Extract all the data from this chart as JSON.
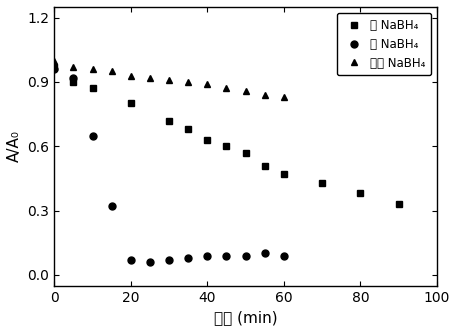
{
  "series1_label": "无 NaBH₄",
  "series2_label": "有 NaBH₄",
  "series3_label": "仅有 NaBH₄",
  "series1_x": [
    0,
    5,
    10,
    20,
    30,
    35,
    40,
    45,
    50,
    55,
    60,
    70,
    80,
    90
  ],
  "series1_y": [
    0.97,
    0.9,
    0.87,
    0.8,
    0.72,
    0.68,
    0.63,
    0.6,
    0.57,
    0.51,
    0.47,
    0.43,
    0.38,
    0.33
  ],
  "series2_x": [
    0,
    5,
    10,
    15,
    20,
    25,
    30,
    35,
    40,
    45,
    50,
    55,
    60
  ],
  "series2_y": [
    0.96,
    0.92,
    0.65,
    0.32,
    0.07,
    0.06,
    0.07,
    0.08,
    0.09,
    0.09,
    0.09,
    0.1,
    0.09
  ],
  "series3_x": [
    0,
    5,
    10,
    15,
    20,
    25,
    30,
    35,
    40,
    45,
    50,
    55,
    60
  ],
  "series3_y": [
    1.0,
    0.97,
    0.96,
    0.95,
    0.93,
    0.92,
    0.91,
    0.9,
    0.89,
    0.87,
    0.86,
    0.84,
    0.83
  ],
  "xlabel": "时间 (min)",
  "ylabel": "A/A₀",
  "xlim": [
    0,
    100
  ],
  "ylim": [
    -0.05,
    1.25
  ],
  "yticks": [
    0.0,
    0.3,
    0.6,
    0.9,
    1.2
  ],
  "xticks": [
    0,
    20,
    40,
    60,
    80,
    100
  ],
  "marker1": "s",
  "marker2": "o",
  "marker3": "^",
  "color": "black",
  "markersize": 5,
  "legend_loc": "upper right"
}
